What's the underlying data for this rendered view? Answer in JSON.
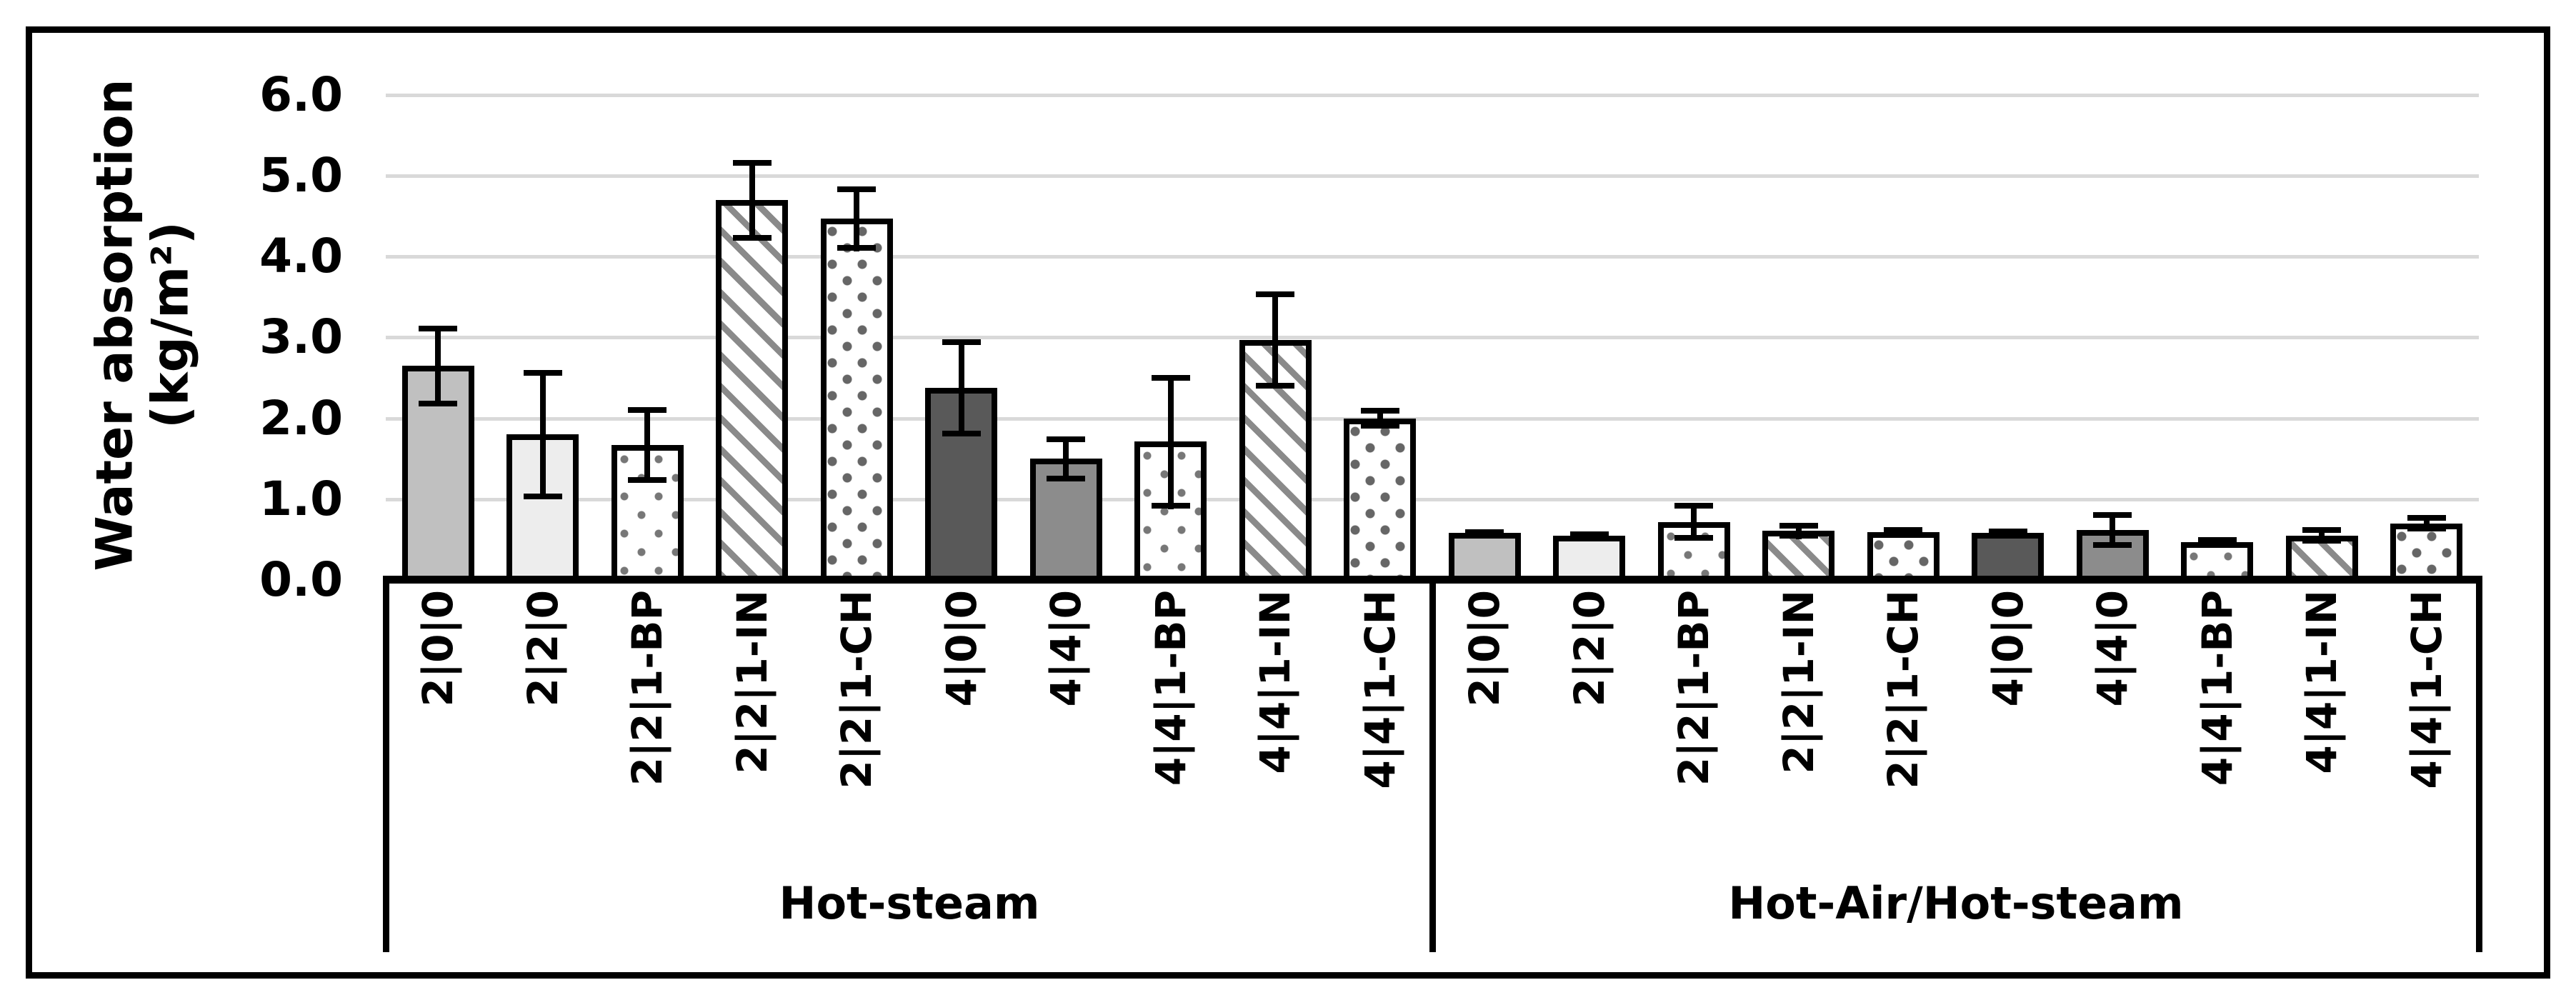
{
  "chart_data": {
    "type": "bar",
    "title": "",
    "ylabel_line1": "Water absorption",
    "ylabel_line2": "(kg/m²)",
    "ylim": [
      0,
      6
    ],
    "ytick_labels": [
      "0.0",
      "1.0",
      "2.0",
      "3.0",
      "4.0",
      "5.0",
      "6.0"
    ],
    "grid": true,
    "legend": "none",
    "categories": [
      "2|0|0",
      "2|2|0",
      "2|2|1-BP",
      "2|2|1-IN",
      "2|2|1-CH",
      "4|0|0",
      "4|4|0",
      "4|4|1-BP",
      "4|4|1-IN",
      "4|4|1-CH"
    ],
    "bar_styles": [
      "fill-gray",
      "fill-light",
      "fill-bp",
      "fill-in",
      "fill-ch",
      "fill-dark",
      "fill-mid",
      "fill-bp",
      "fill-in",
      "fill-ch"
    ],
    "groups": [
      {
        "label": "Hot-steam",
        "values": [
          2.65,
          1.8,
          1.67,
          4.7,
          4.47,
          2.38,
          1.5,
          1.71,
          2.97,
          2.0
        ],
        "errors": [
          0.5,
          0.8,
          0.47,
          0.5,
          0.4,
          0.6,
          0.28,
          0.83,
          0.6,
          0.13
        ]
      },
      {
        "label": "Hot-Air/Hot-steam",
        "values": [
          0.58,
          0.55,
          0.72,
          0.61,
          0.59,
          0.58,
          0.62,
          0.47,
          0.55,
          0.7
        ],
        "errors": [
          0.05,
          0.05,
          0.23,
          0.1,
          0.06,
          0.06,
          0.22,
          0.06,
          0.1,
          0.1
        ]
      }
    ],
    "colors": {
      "bar_outline": "#000000",
      "gridline": "#d9d9d9",
      "solid_gray": "#c0c0c0",
      "solid_lightgray": "#ededed",
      "solid_darkgray": "#595959",
      "solid_midgray": "#8c8c8c",
      "pattern_ink": "#808080"
    }
  }
}
